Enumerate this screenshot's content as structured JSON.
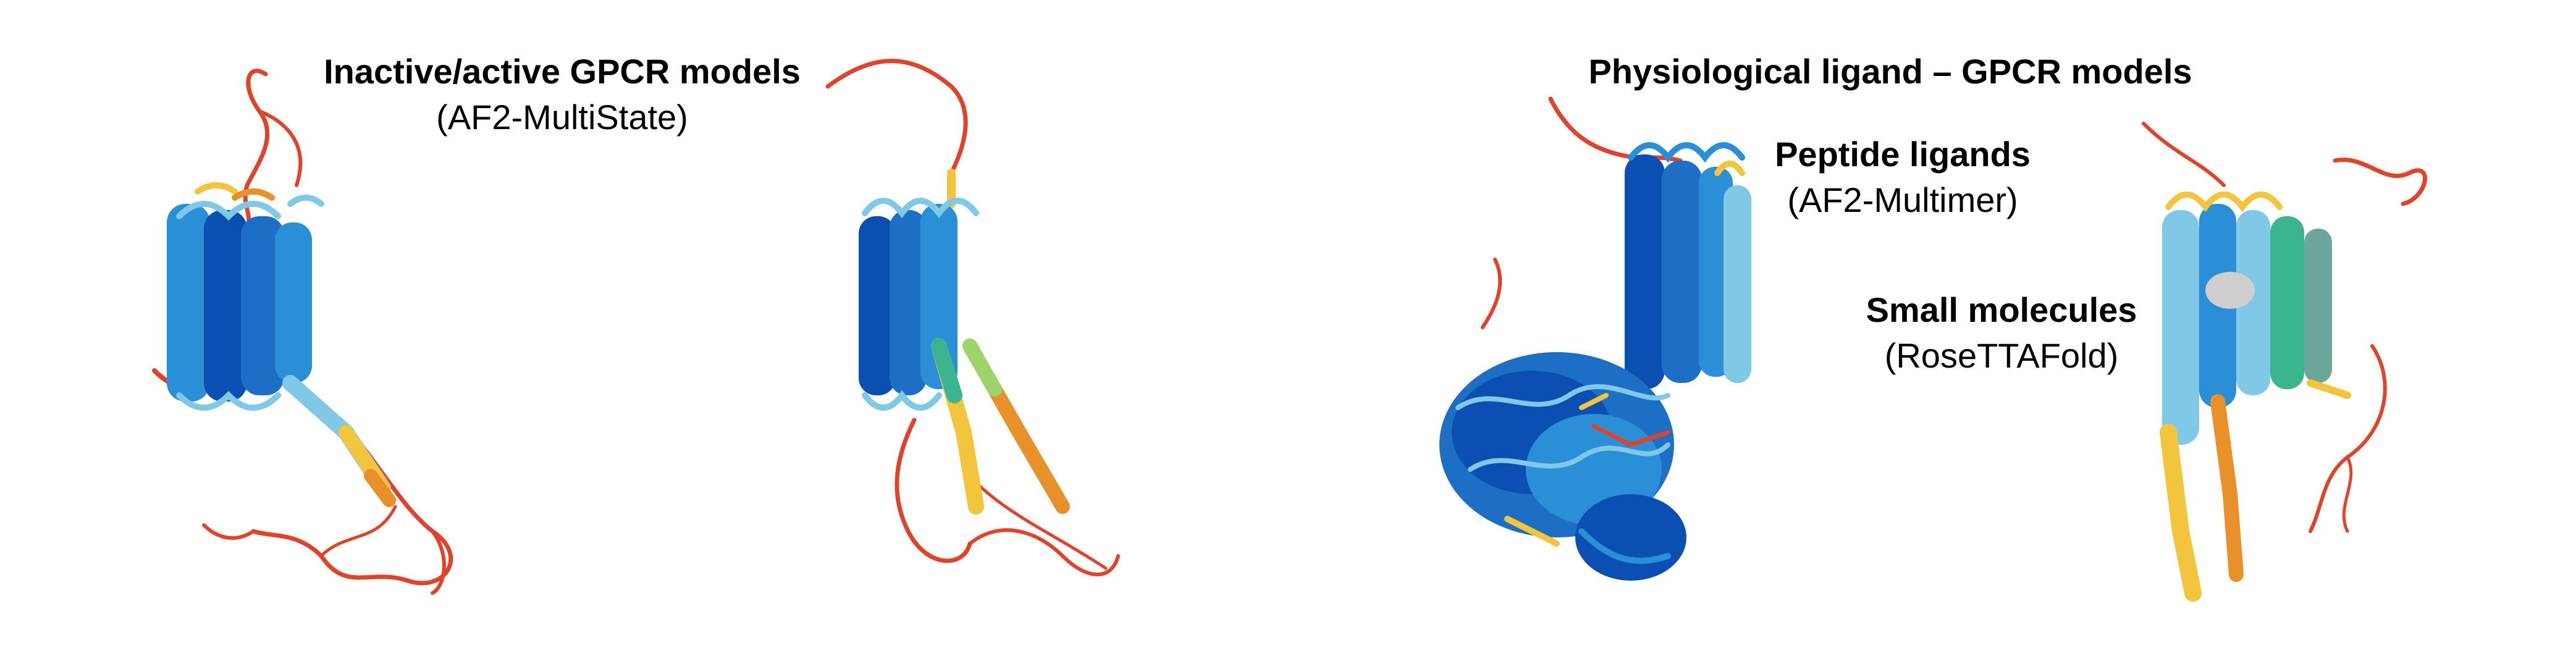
{
  "labels": {
    "left_title": "Inactive/active GPCR models",
    "left_method": "(AF2-MultiState)",
    "right_title": "Physiological ligand – GPCR models",
    "peptide_title": "Peptide ligands",
    "peptide_method": "(AF2-Multimer)",
    "small_title": "Small molecules",
    "small_method": "(RoseTTAFold)"
  },
  "colors": {
    "very_high": "#0b4fb3",
    "confident": "#2a8fd6",
    "mid": "#7fc8e6",
    "low": "#f2c53d",
    "very_low": "#e0432a",
    "ligand": "#cfcfcf"
  }
}
